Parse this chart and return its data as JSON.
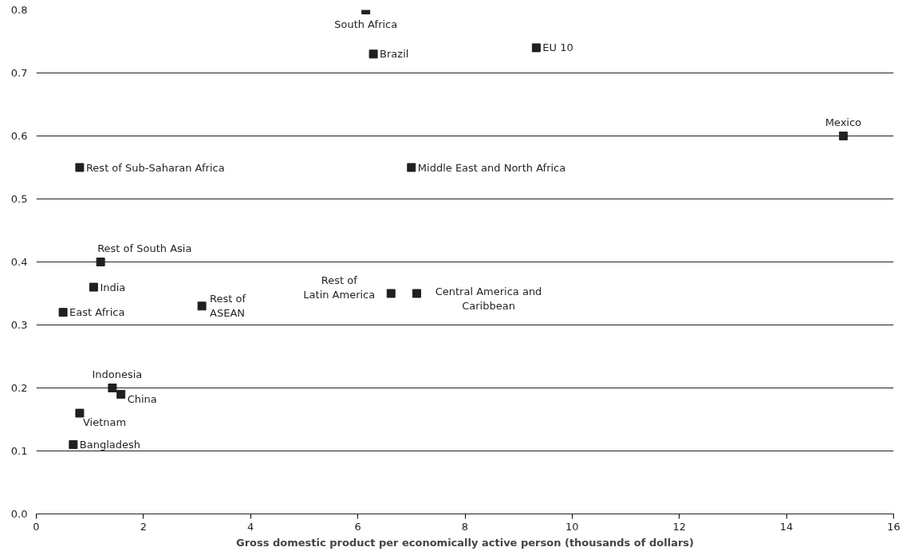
{
  "chart_data": {
    "type": "scatter",
    "xlabel": "Gross domestic product per economically active person (thousands of dollars)",
    "x": [
      6.15,
      6.29,
      9.33,
      15.06,
      0.81,
      7.0,
      1.2,
      1.07,
      0.5,
      3.09,
      6.62,
      7.1,
      1.42,
      1.58,
      0.81,
      0.69
    ],
    "values": [
      0.8,
      0.73,
      0.74,
      0.6,
      0.55,
      0.55,
      0.4,
      0.36,
      0.32,
      0.33,
      0.35,
      0.35,
      0.2,
      0.19,
      0.16,
      0.11
    ],
    "color": "#231f20",
    "marker": "square",
    "grid": "y",
    "xlim": [
      0,
      16
    ],
    "ylim": [
      0,
      0.8
    ],
    "xticks": [
      0,
      2,
      4,
      6,
      8,
      10,
      12,
      14,
      16
    ],
    "yticks": [
      {
        "value": 0,
        "label": "0.0"
      },
      {
        "value": 0.1,
        "label": "0.1"
      },
      {
        "value": 0.2,
        "label": "0.2"
      },
      {
        "value": 0.3,
        "label": "0.3"
      },
      {
        "value": 0.4,
        "label": "0.4"
      },
      {
        "value": 0.5,
        "label": "0.5"
      },
      {
        "value": 0.6,
        "label": "0.6"
      },
      {
        "value": 0.7,
        "label": "0.7"
      },
      {
        "value": 0.8,
        "label": "0.8"
      }
    ],
    "annotations": [
      {
        "text": "South Africa",
        "x": 6.15,
        "y": 0.8
      },
      {
        "text": "Brazil",
        "x": 6.29,
        "y": 0.73
      },
      {
        "text": "EU 10",
        "x": 9.33,
        "y": 0.74
      },
      {
        "text": "Mexico",
        "x": 15.06,
        "y": 0.6
      },
      {
        "text": "Rest of Sub-Saharan Africa",
        "x": 0.81,
        "y": 0.55
      },
      {
        "text": "Middle East and North Africa",
        "x": 7.0,
        "y": 0.55
      },
      {
        "text": "Rest of South Asia",
        "x": 1.2,
        "y": 0.4
      },
      {
        "text": "India",
        "x": 1.07,
        "y": 0.36
      },
      {
        "text": "East Africa",
        "x": 0.5,
        "y": 0.32
      },
      {
        "text": "Rest of\nASEAN",
        "x": 3.09,
        "y": 0.33
      },
      {
        "text": "Rest of\nLatin America",
        "x": 6.62,
        "y": 0.35
      },
      {
        "text": "Central America and\nCaribbean",
        "x": 7.1,
        "y": 0.35
      },
      {
        "text": "Indonesia",
        "x": 1.42,
        "y": 0.2
      },
      {
        "text": "China",
        "x": 1.58,
        "y": 0.19
      },
      {
        "text": "Vietnam",
        "x": 0.81,
        "y": 0.16
      },
      {
        "text": "Bangladesh",
        "x": 0.69,
        "y": 0.11
      }
    ]
  }
}
